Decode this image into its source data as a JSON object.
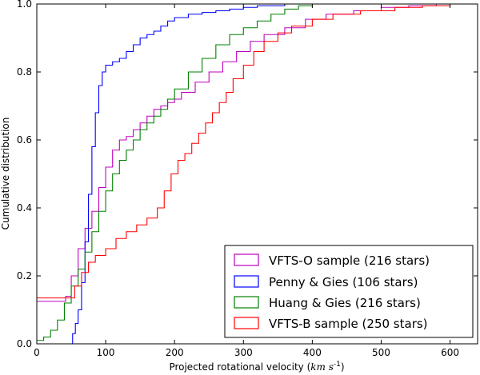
{
  "chart_data": {
    "type": "line",
    "title": "",
    "xlabel_prefix": "Projected rotational velocity (",
    "xlabel_unit": "km s",
    "xlabel_exp": "-1",
    "xlabel_suffix": ")",
    "ylabel": "Cumulative distribution",
    "xlim": [
      0,
      640
    ],
    "ylim": [
      0.0,
      1.0
    ],
    "xticks": [
      {
        "value": 0,
        "label": "0"
      },
      {
        "value": 100,
        "label": "100"
      },
      {
        "value": 200,
        "label": "200"
      },
      {
        "value": 300,
        "label": "300"
      },
      {
        "value": 400,
        "label": "400"
      },
      {
        "value": 500,
        "label": "500"
      },
      {
        "value": 600,
        "label": "600"
      }
    ],
    "yticks": [
      {
        "value": 0.0,
        "label": "0.0"
      },
      {
        "value": 0.2,
        "label": "0.2"
      },
      {
        "value": 0.4,
        "label": "0.4"
      },
      {
        "value": 0.6,
        "label": "0.6"
      },
      {
        "value": 0.8,
        "label": "0.8"
      },
      {
        "value": 1.0,
        "label": "1.0"
      }
    ],
    "legend_position": "lower-right",
    "series": [
      {
        "name": "VFTS-O sample (216 stars)",
        "color": "#bf00bf",
        "x": [
          0,
          38,
          42,
          50,
          60,
          70,
          80,
          90,
          100,
          110,
          120,
          130,
          140,
          150,
          160,
          170,
          180,
          190,
          200,
          210,
          230,
          250,
          270,
          290,
          310,
          330,
          360,
          390,
          420,
          460,
          500,
          540,
          580,
          640
        ],
        "y": [
          0.125,
          0.125,
          0.14,
          0.2,
          0.28,
          0.34,
          0.39,
          0.46,
          0.52,
          0.57,
          0.6,
          0.61,
          0.63,
          0.65,
          0.67,
          0.69,
          0.7,
          0.71,
          0.72,
          0.74,
          0.77,
          0.8,
          0.83,
          0.86,
          0.89,
          0.91,
          0.93,
          0.955,
          0.97,
          0.98,
          0.99,
          0.995,
          1.0,
          1.0
        ]
      },
      {
        "name": "Penny & Gies (106 stars)",
        "color": "#0000ff",
        "x": [
          0,
          48,
          52,
          56,
          60,
          65,
          70,
          75,
          80,
          85,
          90,
          95,
          100,
          110,
          120,
          130,
          140,
          150,
          160,
          170,
          180,
          190,
          200,
          220,
          240,
          260,
          280,
          300,
          320,
          340,
          360,
          380,
          400,
          640
        ],
        "y": [
          0.0,
          0.0,
          0.03,
          0.06,
          0.1,
          0.18,
          0.3,
          0.44,
          0.58,
          0.68,
          0.76,
          0.8,
          0.82,
          0.83,
          0.84,
          0.86,
          0.88,
          0.9,
          0.91,
          0.92,
          0.935,
          0.95,
          0.96,
          0.97,
          0.975,
          0.98,
          0.985,
          0.99,
          0.995,
          0.995,
          1.0,
          1.0,
          1.0,
          1.0
        ]
      },
      {
        "name": "Huang & Gies (216 stars)",
        "color": "#008000",
        "x": [
          0,
          10,
          20,
          30,
          40,
          50,
          60,
          70,
          80,
          90,
          100,
          110,
          120,
          130,
          140,
          150,
          160,
          170,
          180,
          190,
          200,
          220,
          240,
          260,
          280,
          300,
          320,
          340,
          360,
          380,
          400,
          640
        ],
        "y": [
          0.01,
          0.02,
          0.04,
          0.07,
          0.12,
          0.17,
          0.22,
          0.27,
          0.33,
          0.39,
          0.45,
          0.5,
          0.54,
          0.57,
          0.6,
          0.63,
          0.65,
          0.67,
          0.69,
          0.72,
          0.75,
          0.8,
          0.84,
          0.88,
          0.91,
          0.93,
          0.95,
          0.97,
          0.985,
          0.995,
          1.0,
          1.0
        ]
      },
      {
        "name": "VFTS-B sample (250 stars)",
        "color": "#ff0000",
        "x": [
          0,
          45,
          55,
          65,
          75,
          85,
          100,
          115,
          130,
          145,
          160,
          175,
          185,
          195,
          205,
          215,
          225,
          235,
          245,
          255,
          265,
          275,
          285,
          300,
          315,
          330,
          350,
          370,
          400,
          430,
          470,
          520,
          560,
          600,
          640
        ],
        "y": [
          0.135,
          0.135,
          0.17,
          0.21,
          0.24,
          0.26,
          0.28,
          0.31,
          0.33,
          0.35,
          0.37,
          0.4,
          0.45,
          0.5,
          0.54,
          0.56,
          0.59,
          0.62,
          0.65,
          0.68,
          0.71,
          0.74,
          0.78,
          0.82,
          0.86,
          0.89,
          0.915,
          0.935,
          0.955,
          0.97,
          0.98,
          0.99,
          0.995,
          1.0,
          1.0
        ]
      }
    ]
  }
}
